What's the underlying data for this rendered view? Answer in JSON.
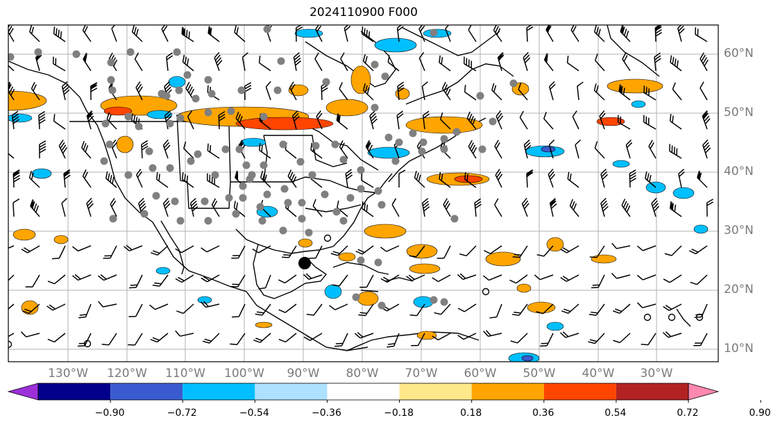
{
  "title": "2024110900 F000",
  "lat_labels": [
    "60°N",
    "50°N",
    "40°N",
    "30°N",
    "20°N",
    "10°N"
  ],
  "lon_labels": [
    "130°W",
    "120°W",
    "110°W",
    "100°W",
    "90°W",
    "80°W",
    "70°W",
    "60°W",
    "50°W",
    "40°W",
    "30°W"
  ],
  "colorbar": {
    "ticks": [
      "−0.90",
      "−0.72",
      "−0.54",
      "−0.36",
      "−0.18",
      "0.18",
      "0.36",
      "0.54",
      "0.72",
      "0.90"
    ],
    "colors": {
      "under": "#9b30d9",
      "bins": [
        "#00008b",
        "#3a5bd0",
        "#00bfff",
        "#aee0ff",
        "#ffffff",
        "#ffe98a",
        "#ffa500",
        "#ff4500",
        "#b22222"
      ],
      "over": "#ff88b0"
    }
  },
  "colors": {
    "positive_low": "#ffa500",
    "positive_mid": "#ff4500",
    "negative_low": "#00bfff",
    "negative_high": "#3a5bd0",
    "station": "#808080",
    "grid": "#b0b0b0"
  }
}
